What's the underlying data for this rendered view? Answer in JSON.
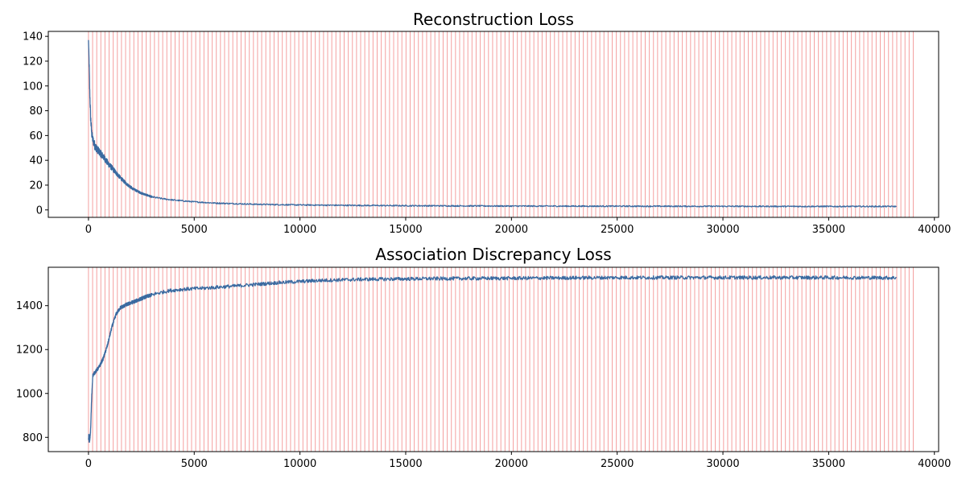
{
  "colors": {
    "series": "#3b6aa0",
    "epoch_marker": "#f08080",
    "axes": "#000000",
    "background": "#ffffff"
  },
  "chart_data": [
    {
      "type": "line",
      "title": "Reconstruction Loss",
      "xlabel": "",
      "ylabel": "",
      "xlim": [
        -1900,
        40200
      ],
      "ylim": [
        -6,
        144
      ],
      "xticks": [
        0,
        5000,
        10000,
        15000,
        20000,
        25000,
        30000,
        35000,
        40000
      ],
      "yticks": [
        0,
        20,
        40,
        60,
        80,
        100,
        120,
        140
      ],
      "grid": false,
      "legend": "none",
      "epoch_marker_spacing": 195,
      "epoch_marker_range": [
        0,
        39000
      ],
      "series": [
        {
          "x": [
            0,
            30,
            60,
            100,
            150,
            200,
            300,
            400,
            500,
            700,
            900,
            1200,
            1500,
            1800,
            2100,
            2500,
            3000,
            3500,
            4000,
            5000,
            6000,
            8000,
            10000,
            12000,
            15000,
            20000,
            25000,
            30000,
            35000,
            38200
          ],
          "y": [
            137,
            118,
            95,
            75,
            62,
            57,
            52,
            49,
            47,
            43,
            38,
            32,
            26,
            21,
            17,
            13.5,
            10.5,
            9,
            8,
            6.5,
            5.5,
            4.5,
            4,
            3.7,
            3.4,
            3.1,
            3.0,
            2.9,
            2.8,
            2.8
          ],
          "noise": [
            0,
            4,
            4,
            4,
            3.5,
            3.5,
            3.5,
            3,
            3,
            2.5,
            2.5,
            2,
            1.5,
            1.2,
            1.0,
            0.8,
            0.7,
            0.6,
            0.5,
            0.5,
            0.5,
            0.5,
            0.5,
            0.5,
            0.5,
            0.5,
            0.5,
            0.5,
            0.5,
            0.5
          ]
        }
      ]
    },
    {
      "type": "line",
      "title": "Association Discrepancy Loss",
      "xlabel": "",
      "ylabel": "",
      "xlim": [
        -1900,
        40200
      ],
      "ylim": [
        735,
        1575
      ],
      "xticks": [
        0,
        5000,
        10000,
        15000,
        20000,
        25000,
        30000,
        35000,
        40000
      ],
      "yticks": [
        800,
        1000,
        1200,
        1400
      ],
      "grid": false,
      "legend": "none",
      "epoch_marker_spacing": 195,
      "epoch_marker_range": [
        0,
        39000
      ],
      "series": [
        {
          "x": [
            0,
            50,
            100,
            150,
            200,
            250,
            300,
            500,
            700,
            900,
            1100,
            1300,
            1500,
            1800,
            2200,
            2700,
            3200,
            3800,
            4500,
            5500,
            7000,
            9000,
            11000,
            13000,
            16000,
            20000,
            25000,
            30000,
            35000,
            38200
          ],
          "y": [
            810,
            780,
            830,
            980,
            1080,
            1090,
            1095,
            1120,
            1160,
            1220,
            1300,
            1360,
            1390,
            1405,
            1420,
            1440,
            1455,
            1468,
            1475,
            1480,
            1490,
            1505,
            1515,
            1520,
            1523,
            1525,
            1528,
            1528,
            1528,
            1527
          ],
          "noise": [
            20,
            15,
            10,
            10,
            8,
            8,
            8,
            8,
            8,
            8,
            8,
            8,
            8,
            8,
            8,
            8,
            8,
            8,
            8,
            8,
            8,
            8,
            8,
            8,
            8,
            8,
            8,
            8,
            8,
            8
          ]
        }
      ]
    }
  ]
}
